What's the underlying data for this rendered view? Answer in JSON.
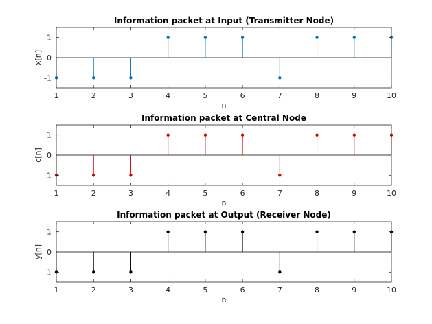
{
  "chart_data": [
    {
      "type": "stem",
      "title": "Information packet at Input (Transmitter Node)",
      "xlabel": "n",
      "ylabel": "x[n]",
      "x": [
        1,
        2,
        3,
        4,
        5,
        6,
        7,
        8,
        9,
        10
      ],
      "values": [
        -1,
        -1,
        -1,
        1,
        1,
        1,
        -1,
        1,
        1,
        1
      ],
      "xlim": [
        1,
        10
      ],
      "ylim": [
        -1.5,
        1.5
      ],
      "xticks": [
        "1",
        "2",
        "3",
        "4",
        "5",
        "6",
        "7",
        "8",
        "9",
        "10"
      ],
      "yticks": [
        "-1",
        "0",
        "1"
      ],
      "color": "#0072BD",
      "grid": false
    },
    {
      "type": "stem",
      "title": "Information packet at Central Node",
      "xlabel": "n",
      "ylabel": "c[n]",
      "x": [
        1,
        2,
        3,
        4,
        5,
        6,
        7,
        8,
        9,
        10
      ],
      "values": [
        -1,
        -1,
        -1,
        1,
        1,
        1,
        -1,
        1,
        1,
        1
      ],
      "xlim": [
        1,
        10
      ],
      "ylim": [
        -1.5,
        1.5
      ],
      "xticks": [
        "1",
        "2",
        "3",
        "4",
        "5",
        "6",
        "7",
        "8",
        "9",
        "10"
      ],
      "yticks": [
        "-1",
        "0",
        "1"
      ],
      "color": "#D60000",
      "grid": false
    },
    {
      "type": "stem",
      "title": "Information packet at Output (Receiver Node)",
      "xlabel": "n",
      "ylabel": "y[n]",
      "x": [
        1,
        2,
        3,
        4,
        5,
        6,
        7,
        8,
        9,
        10
      ],
      "values": [
        -1,
        -1,
        -1,
        1,
        1,
        1,
        -1,
        1,
        1,
        1
      ],
      "xlim": [
        1,
        10
      ],
      "ylim": [
        -1.5,
        1.5
      ],
      "xticks": [
        "1",
        "2",
        "3",
        "4",
        "5",
        "6",
        "7",
        "8",
        "9",
        "10"
      ],
      "yticks": [
        "-1",
        "0",
        "1"
      ],
      "color": "#000000",
      "grid": false
    }
  ]
}
